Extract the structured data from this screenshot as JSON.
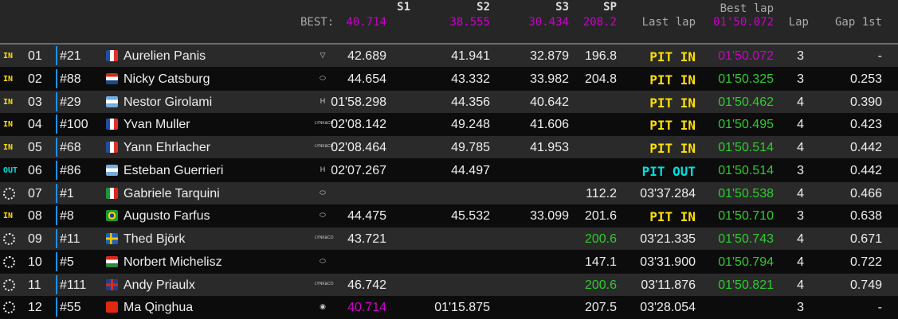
{
  "header": {
    "best_label": "BEST:",
    "s1": "S1",
    "s2": "S2",
    "s3": "S3",
    "sp": "SP",
    "last_lap": "Last lap",
    "best_lap": "Best lap",
    "lap": "Lap",
    "gap": "Gap 1st",
    "best_s1": "40.714",
    "best_s2": "38.555",
    "best_s3": "30.434",
    "best_sp": "208.2",
    "best_lap_time": "01'50.072"
  },
  "colors": {
    "purple": "#cc00cc",
    "green": "#2ecc2e",
    "yellow": "#ffe000",
    "cyan": "#00e0e0"
  },
  "rows": [
    {
      "status": "IN",
      "pos": "01",
      "num": "#21",
      "flag": "france",
      "name": "Aurelien Panis",
      "brand": "cupra-icon",
      "s1": "42.689",
      "s2": "41.941",
      "s3": "32.879",
      "sp": "196.8",
      "last": "PIT IN",
      "best": "01'50.072",
      "best_c": "pur",
      "lap": "3",
      "gap": "-"
    },
    {
      "status": "IN",
      "pos": "02",
      "num": "#88",
      "flag": "netherlands",
      "name": "Nicky Catsburg",
      "brand": "hyundai-icon",
      "s1": "44.654",
      "s2": "43.332",
      "s3": "33.982",
      "sp": "204.8",
      "last": "PIT IN",
      "best": "01'50.325",
      "lap": "3",
      "gap": "0.253"
    },
    {
      "status": "IN",
      "pos": "03",
      "num": "#29",
      "flag": "argentina",
      "name": "Nestor Girolami",
      "brand": "honda-icon",
      "s1": "01'58.298",
      "s2": "44.356",
      "s3": "40.642",
      "sp": "",
      "last": "PIT IN",
      "best": "01'50.462",
      "lap": "4",
      "gap": "0.390"
    },
    {
      "status": "IN",
      "pos": "04",
      "num": "#100",
      "flag": "france",
      "name": "Yvan Muller",
      "brand": "lynkco-icon",
      "s1": "02'08.142",
      "s2": "49.248",
      "s3": "41.606",
      "sp": "",
      "last": "PIT IN",
      "best": "01'50.495",
      "lap": "4",
      "gap": "0.423"
    },
    {
      "status": "IN",
      "pos": "05",
      "num": "#68",
      "flag": "france",
      "name": "Yann Ehrlacher",
      "brand": "lynkco-icon",
      "s1": "02'08.464",
      "s2": "49.785",
      "s3": "41.953",
      "sp": "",
      "last": "PIT IN",
      "best": "01'50.514",
      "lap": "4",
      "gap": "0.442"
    },
    {
      "status": "OUT",
      "pos": "06",
      "num": "#86",
      "flag": "argentina",
      "name": "Esteban Guerrieri",
      "brand": "honda-icon",
      "s1": "02'07.267",
      "s2": "44.497",
      "s3": "",
      "sp": "",
      "last": "PIT OUT",
      "best": "01'50.514",
      "lap": "3",
      "gap": "0.442"
    },
    {
      "status": "ring",
      "pos": "07",
      "num": "#1",
      "flag": "italy",
      "name": "Gabriele Tarquini",
      "brand": "hyundai-icon",
      "s1": "",
      "s2": "",
      "s3": "",
      "sp": "112.2",
      "last": "03'37.284",
      "best": "01'50.538",
      "lap": "4",
      "gap": "0.466"
    },
    {
      "status": "IN",
      "pos": "08",
      "num": "#8",
      "flag": "brazil",
      "name": "Augusto Farfus",
      "brand": "hyundai-icon",
      "s1": "44.475",
      "s2": "45.532",
      "s3": "33.099",
      "sp": "201.6",
      "last": "PIT IN",
      "best": "01'50.710",
      "lap": "3",
      "gap": "0.638"
    },
    {
      "status": "ring",
      "pos": "09",
      "num": "#11",
      "flag": "sweden",
      "name": "Thed Björk",
      "brand": "lynkco-icon",
      "s1": "43.721",
      "s2": "",
      "s3": "",
      "sp": "200.6",
      "sp_c": "grn",
      "last": "03'21.335",
      "best": "01'50.743",
      "lap": "4",
      "gap": "0.671"
    },
    {
      "status": "ring",
      "pos": "10",
      "num": "#5",
      "flag": "hungary",
      "name": "Norbert Michelisz",
      "brand": "hyundai-icon",
      "s1": "",
      "s2": "",
      "s3": "",
      "sp": "147.1",
      "last": "03'31.900",
      "best": "01'50.794",
      "lap": "4",
      "gap": "0.722"
    },
    {
      "status": "ring",
      "pos": "11",
      "num": "#111",
      "flag": "uk",
      "name": "Andy Priaulx",
      "brand": "lynkco-icon",
      "s1": "46.742",
      "s2": "",
      "s3": "",
      "sp": "200.6",
      "sp_c": "grn",
      "last": "03'11.876",
      "best": "01'50.821",
      "lap": "4",
      "gap": "0.749"
    },
    {
      "status": "ring",
      "pos": "12",
      "num": "#55",
      "flag": "china",
      "name": "Ma Qinghua",
      "brand": "alfa-romeo-icon",
      "s1": "40.714",
      "s1_c": "pur",
      "s2": "01'15.875",
      "s3": "",
      "sp": "207.5",
      "last": "03'28.054",
      "best": "",
      "lap": "3",
      "gap": "-"
    }
  ]
}
